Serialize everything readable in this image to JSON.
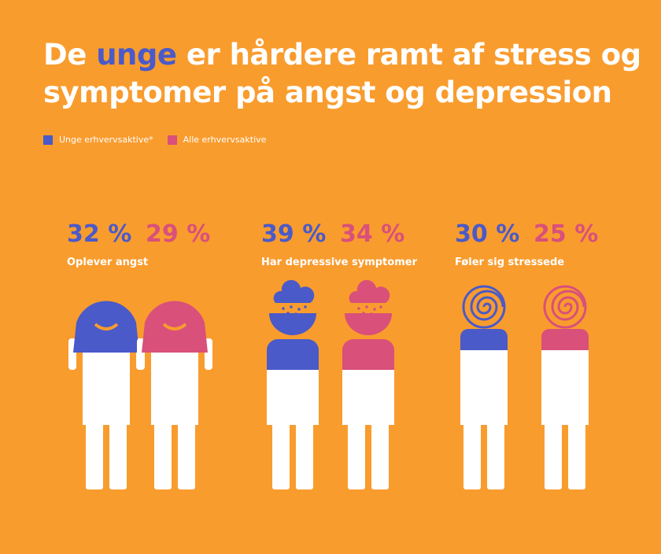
{
  "header": {
    "title_start": "De ",
    "title_highlight": "unge",
    "title_line1_end": " er hårdere ramt af stress og",
    "title_line2": "symptomer på angst og depression"
  },
  "legend": [
    {
      "label": "Unge erhvervsaktive*",
      "color": "#4A5AC8"
    },
    {
      "label": "Alle erhvervsaktive",
      "color": "#D9507A"
    }
  ],
  "groups": [
    {
      "young": "32 %",
      "all": "29 %",
      "label": "Oplever angst",
      "icon": "hair"
    },
    {
      "young": "39 %",
      "all": "34 %",
      "label": "Har depressive symptomer",
      "icon": "cloud"
    },
    {
      "young": "30 %",
      "all": "25 %",
      "label": "Føler sig stressede",
      "icon": "spiral"
    }
  ]
}
